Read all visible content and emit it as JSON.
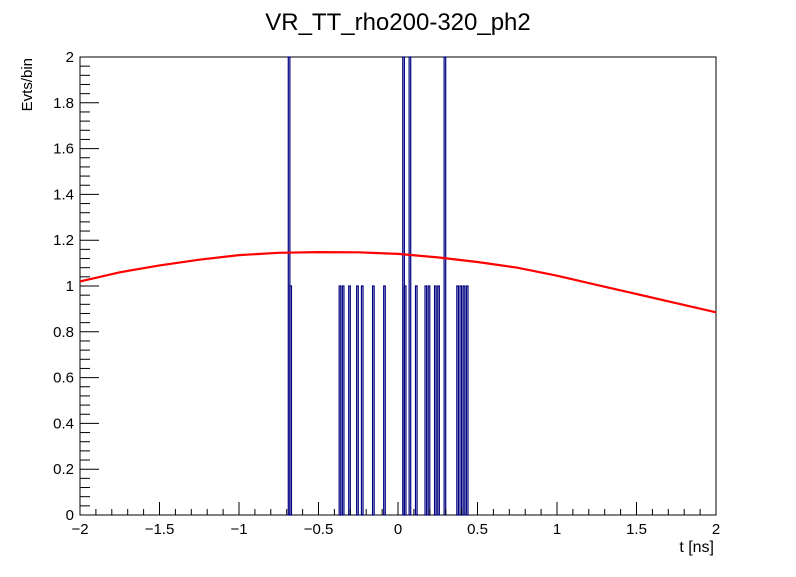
{
  "chart_data": {
    "type": "histogram",
    "title": "VR_TT_rho200-320_ph2",
    "xlabel": "t [ns]",
    "ylabel": "Evts/bin",
    "xlim": [
      -2,
      2
    ],
    "ylim": [
      0,
      2
    ],
    "grid": false,
    "legend": "none",
    "x_ticks": [
      {
        "value": -2,
        "label": "−2"
      },
      {
        "value": -1.5,
        "label": "−1.5"
      },
      {
        "value": -1,
        "label": "−1"
      },
      {
        "value": -0.5,
        "label": "−0.5"
      },
      {
        "value": 0,
        "label": "0"
      },
      {
        "value": 0.5,
        "label": "0.5"
      },
      {
        "value": 1,
        "label": "1"
      },
      {
        "value": 1.5,
        "label": "1.5"
      },
      {
        "value": 2,
        "label": "2"
      }
    ],
    "y_ticks": [
      {
        "value": 0,
        "label": "0"
      },
      {
        "value": 0.2,
        "label": "0.2"
      },
      {
        "value": 0.4,
        "label": "0.4"
      },
      {
        "value": 0.6,
        "label": "0.6"
      },
      {
        "value": 0.8,
        "label": "0.8"
      },
      {
        "value": 1,
        "label": "1"
      },
      {
        "value": 1.2,
        "label": "1.2"
      },
      {
        "value": 1.4,
        "label": "1.4"
      },
      {
        "value": 1.6,
        "label": "1.6"
      },
      {
        "value": 1.8,
        "label": "1.8"
      },
      {
        "value": 2,
        "label": "2"
      }
    ],
    "bin_width": 0.01,
    "histogram": {
      "color": "#000080",
      "bins": [
        {
          "x": -0.69,
          "count": 2
        },
        {
          "x": -0.68,
          "count": 1
        },
        {
          "x": -0.37,
          "count": 1
        },
        {
          "x": -0.35,
          "count": 1
        },
        {
          "x": -0.31,
          "count": 1
        },
        {
          "x": -0.26,
          "count": 1
        },
        {
          "x": -0.23,
          "count": 1
        },
        {
          "x": -0.16,
          "count": 1
        },
        {
          "x": -0.09,
          "count": 1
        },
        {
          "x": 0.03,
          "count": 2
        },
        {
          "x": 0.04,
          "count": 1
        },
        {
          "x": 0.07,
          "count": 2
        },
        {
          "x": 0.11,
          "count": 1
        },
        {
          "x": 0.17,
          "count": 1
        },
        {
          "x": 0.19,
          "count": 1
        },
        {
          "x": 0.23,
          "count": 1
        },
        {
          "x": 0.25,
          "count": 1
        },
        {
          "x": 0.29,
          "count": 2
        },
        {
          "x": 0.37,
          "count": 1
        },
        {
          "x": 0.39,
          "count": 1
        },
        {
          "x": 0.41,
          "count": 1
        },
        {
          "x": 0.43,
          "count": 1
        }
      ]
    },
    "fit_curve": {
      "color": "#ff0000",
      "x": [
        -2.0,
        -1.75,
        -1.5,
        -1.25,
        -1.0,
        -0.75,
        -0.5,
        -0.25,
        0.0,
        0.25,
        0.5,
        0.75,
        1.0,
        1.25,
        1.5,
        1.75,
        2.0
      ],
      "y": [
        1.02,
        1.06,
        1.09,
        1.115,
        1.135,
        1.145,
        1.148,
        1.147,
        1.14,
        1.125,
        1.105,
        1.08,
        1.045,
        1.005,
        0.965,
        0.925,
        0.885
      ]
    }
  }
}
